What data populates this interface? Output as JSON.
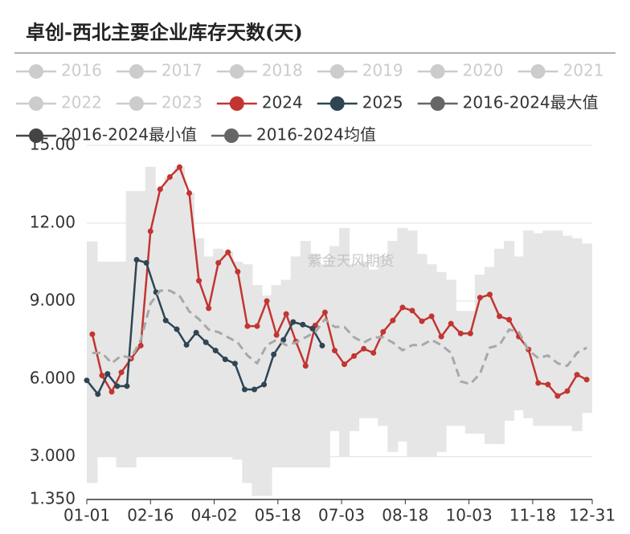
{
  "chart_data": {
    "type": "line",
    "title": "卓创-西北主要企业库存天数(天)",
    "watermark": "紫金天风期货",
    "ylim": [
      1.35,
      15
    ],
    "yticks": [
      {
        "value": 1.35,
        "label": "1.350"
      },
      {
        "value": 3,
        "label": "3.000"
      },
      {
        "value": 6,
        "label": "6.000"
      },
      {
        "value": 9,
        "label": "9.000"
      },
      {
        "value": 12,
        "label": "12.00"
      },
      {
        "value": 15,
        "label": "15.00"
      }
    ],
    "xlim": [
      "01-01",
      "12-31"
    ],
    "xticks": [
      "01-01",
      "02-16",
      "04-02",
      "05-18",
      "07-03",
      "08-18",
      "10-03",
      "11-18",
      "12-31"
    ],
    "grid": true,
    "band_color": "#e6e6e6",
    "series": [
      {
        "name": "2016",
        "color": "#cccccc",
        "visible": false
      },
      {
        "name": "2017",
        "color": "#cccccc",
        "visible": false
      },
      {
        "name": "2018",
        "color": "#cccccc",
        "visible": false
      },
      {
        "name": "2019",
        "color": "#cccccc",
        "visible": false
      },
      {
        "name": "2020",
        "color": "#cccccc",
        "visible": false
      },
      {
        "name": "2021",
        "color": "#cccccc",
        "visible": false
      },
      {
        "name": "2022",
        "color": "#cccccc",
        "visible": false
      },
      {
        "name": "2023",
        "color": "#cccccc",
        "visible": false
      },
      {
        "name": "2024",
        "color": "#c23531",
        "markers": true,
        "x": [
          "01-05",
          "01-12",
          "01-19",
          "01-26",
          "02-02",
          "02-09",
          "02-16",
          "02-23",
          "03-01",
          "03-08",
          "03-15",
          "03-22",
          "03-29",
          "04-05",
          "04-12",
          "04-19",
          "04-26",
          "05-03",
          "05-10",
          "05-17",
          "05-24",
          "05-31",
          "06-07",
          "06-14",
          "06-21",
          "06-28",
          "07-05",
          "07-12",
          "07-19",
          "07-26",
          "08-02",
          "08-09",
          "08-16",
          "08-23",
          "08-30",
          "09-06",
          "09-13",
          "09-20",
          "09-27",
          "10-04",
          "10-11",
          "10-18",
          "10-25",
          "11-01",
          "11-08",
          "11-15",
          "11-22",
          "11-29",
          "12-06",
          "12-13",
          "12-20",
          "12-27"
        ],
        "values": [
          7.72,
          6.13,
          5.5,
          6.25,
          6.78,
          7.28,
          11.69,
          13.31,
          13.78,
          14.16,
          13.16,
          9.78,
          8.72,
          10.47,
          10.88,
          10.13,
          8.03,
          8.03,
          9.0,
          7.69,
          8.5,
          7.44,
          6.5,
          8.06,
          8.56,
          7.09,
          6.56,
          6.88,
          7.16,
          7.0,
          7.81,
          8.25,
          8.75,
          8.63,
          8.22,
          8.41,
          7.63,
          8.13,
          7.75,
          7.75,
          9.13,
          9.25,
          8.41,
          8.28,
          7.63,
          7.13,
          5.84,
          5.78,
          5.34,
          5.53,
          6.16,
          5.97
        ]
      },
      {
        "name": "2025",
        "color": "#2f4554",
        "markers": true,
        "x": [
          "01-01",
          "01-09",
          "01-16",
          "01-23",
          "01-30",
          "02-06",
          "02-13",
          "02-20",
          "02-27",
          "03-06",
          "03-13",
          "03-20",
          "03-27",
          "04-03",
          "04-10",
          "04-17",
          "04-24",
          "05-01",
          "05-08",
          "05-15",
          "05-22",
          "05-29",
          "06-05",
          "06-12",
          "06-19"
        ],
        "values": [
          5.94,
          5.41,
          6.19,
          5.72,
          5.72,
          10.59,
          10.47,
          9.34,
          8.25,
          7.91,
          7.31,
          7.78,
          7.41,
          7.09,
          6.75,
          6.59,
          5.59,
          5.59,
          5.78,
          6.94,
          7.5,
          8.19,
          8.09,
          7.94,
          7.28
        ]
      },
      {
        "name": "2016-2024最大值",
        "color": "#666666",
        "band": "upper",
        "x": [
          "01-05",
          "01-12",
          "01-19",
          "01-26",
          "02-02",
          "02-09",
          "02-16",
          "02-23",
          "03-01",
          "03-08",
          "03-15",
          "03-22",
          "03-29",
          "04-05",
          "04-12",
          "04-19",
          "04-26",
          "05-03",
          "05-10",
          "05-17",
          "05-24",
          "05-31",
          "06-07",
          "06-14",
          "06-21",
          "06-28",
          "07-05",
          "07-12",
          "07-19",
          "07-26",
          "08-02",
          "08-09",
          "08-16",
          "08-23",
          "08-30",
          "09-06",
          "09-13",
          "09-20",
          "09-27",
          "10-04",
          "10-11",
          "10-18",
          "10-25",
          "11-01",
          "11-08",
          "11-15",
          "11-22",
          "11-29",
          "12-06",
          "12-13",
          "12-20",
          "12-27"
        ],
        "values": [
          11.28,
          10.5,
          10.5,
          10.5,
          13.22,
          13.22,
          14.16,
          13.31,
          13.78,
          14.16,
          13.16,
          11.4,
          10.7,
          11.0,
          10.9,
          10.5,
          10.4,
          9.6,
          9.2,
          9.6,
          9.8,
          10.7,
          11.3,
          10.8,
          10.4,
          11.1,
          11.8,
          10.4,
          10.5,
          10.2,
          10.7,
          11.3,
          11.8,
          11.7,
          10.8,
          10.4,
          10.1,
          9.8,
          8.6,
          8.6,
          10.0,
          10.3,
          11.0,
          11.3,
          10.7,
          11.7,
          11.6,
          11.7,
          11.7,
          11.5,
          11.4,
          11.2
        ]
      },
      {
        "name": "2016-2024最小值",
        "color": "#444444",
        "band": "lower",
        "x": [
          "01-05",
          "01-12",
          "01-19",
          "01-26",
          "02-02",
          "02-09",
          "02-16",
          "02-23",
          "03-01",
          "03-08",
          "03-15",
          "03-22",
          "03-29",
          "04-05",
          "04-12",
          "04-19",
          "04-26",
          "05-03",
          "05-10",
          "05-17",
          "05-24",
          "05-31",
          "06-07",
          "06-14",
          "06-21",
          "06-28",
          "07-05",
          "07-12",
          "07-19",
          "07-26",
          "08-02",
          "08-09",
          "08-16",
          "08-23",
          "08-30",
          "09-06",
          "09-13",
          "09-20",
          "09-27",
          "10-04",
          "10-11",
          "10-18",
          "10-25",
          "11-01",
          "11-08",
          "11-15",
          "11-22",
          "11-29",
          "12-06",
          "12-13",
          "12-20",
          "12-27"
        ],
        "values": [
          2.0,
          3.0,
          3.0,
          2.6,
          2.6,
          3.0,
          3.0,
          3.0,
          3.0,
          3.0,
          3.0,
          3.0,
          3.0,
          3.0,
          3.0,
          2.9,
          2.0,
          1.5,
          1.5,
          2.6,
          2.6,
          2.6,
          2.6,
          2.6,
          2.6,
          4.0,
          3.0,
          4.0,
          4.5,
          4.5,
          4.2,
          3.2,
          3.6,
          3.0,
          3.0,
          3.0,
          3.2,
          4.2,
          4.2,
          3.9,
          3.9,
          3.5,
          3.5,
          4.4,
          4.8,
          4.5,
          4.2,
          4.2,
          4.2,
          4.2,
          4.0,
          4.7
        ]
      },
      {
        "name": "2016-2024均值",
        "color": "#666666",
        "line_color": "#a8a8a8",
        "dashed": true,
        "x": [
          "01-05",
          "01-12",
          "01-19",
          "01-26",
          "02-02",
          "02-09",
          "02-16",
          "02-23",
          "03-01",
          "03-08",
          "03-15",
          "03-22",
          "03-29",
          "04-05",
          "04-12",
          "04-19",
          "04-26",
          "05-03",
          "05-10",
          "05-17",
          "05-24",
          "05-31",
          "06-07",
          "06-14",
          "06-21",
          "06-28",
          "07-05",
          "07-12",
          "07-19",
          "07-26",
          "08-02",
          "08-09",
          "08-16",
          "08-23",
          "08-30",
          "09-06",
          "09-13",
          "09-20",
          "09-27",
          "10-04",
          "10-11",
          "10-18",
          "10-25",
          "11-01",
          "11-08",
          "11-15",
          "11-22",
          "11-29",
          "12-06",
          "12-13",
          "12-20",
          "12-27"
        ],
        "values": [
          7.0,
          7.0,
          6.6,
          6.9,
          6.8,
          7.5,
          8.9,
          9.4,
          9.4,
          9.2,
          8.6,
          8.3,
          7.9,
          7.8,
          7.6,
          7.4,
          6.9,
          6.6,
          7.3,
          7.5,
          7.3,
          7.4,
          7.6,
          7.8,
          8.3,
          8.0,
          8.0,
          7.6,
          7.4,
          7.6,
          7.6,
          7.4,
          7.1,
          7.3,
          7.3,
          7.5,
          7.3,
          7.0,
          5.9,
          5.8,
          6.2,
          7.2,
          7.3,
          7.9,
          7.8,
          7.1,
          6.8,
          6.9,
          6.6,
          6.5,
          7.0,
          7.2
        ]
      }
    ]
  }
}
